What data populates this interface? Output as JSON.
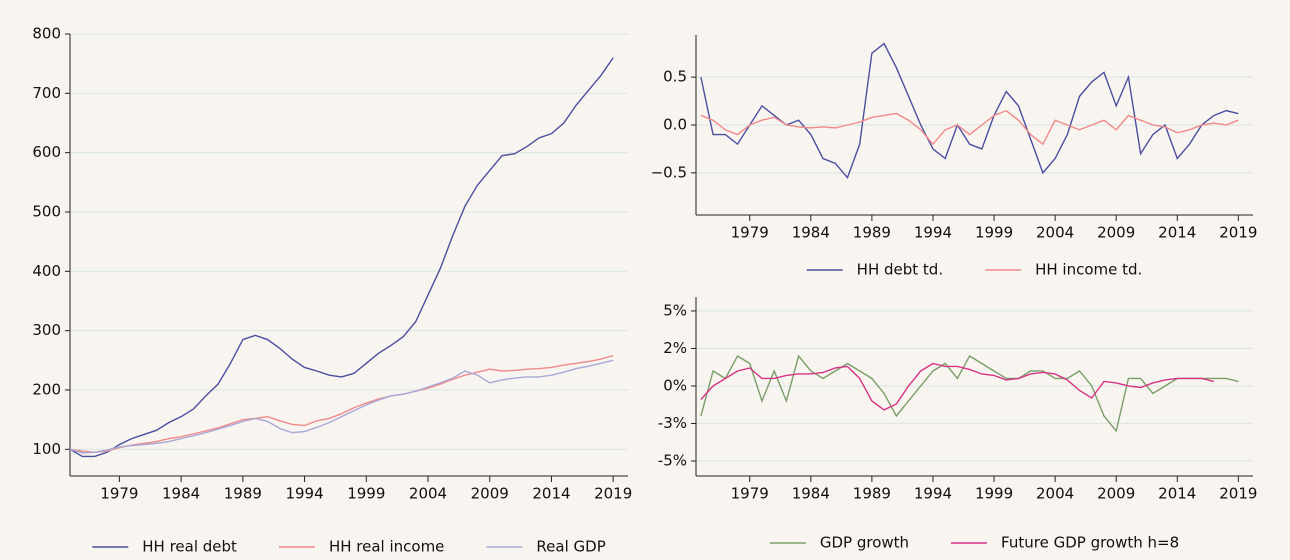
{
  "chart_data": [
    {
      "type": "line",
      "x": [
        1975,
        1976,
        1977,
        1978,
        1979,
        1980,
        1981,
        1982,
        1983,
        1984,
        1985,
        1986,
        1987,
        1988,
        1989,
        1990,
        1991,
        1992,
        1993,
        1994,
        1995,
        1996,
        1997,
        1998,
        1999,
        2000,
        2001,
        2002,
        2003,
        2004,
        2005,
        2006,
        2007,
        2008,
        2009,
        2010,
        2011,
        2012,
        2013,
        2014,
        2015,
        2016,
        2017,
        2018,
        2019
      ],
      "xlim": [
        1975,
        2020.2
      ],
      "xticks": [
        1979,
        1984,
        1989,
        1994,
        1999,
        2004,
        2009,
        2014,
        2019
      ],
      "ylim": [
        55,
        800
      ],
      "yticks": [
        100,
        200,
        300,
        400,
        500,
        600,
        700,
        800
      ],
      "grid": true,
      "legend": "lower center",
      "series": [
        {
          "name": "HH real debt",
          "color": "#4b4fa0",
          "values": [
            100,
            88,
            88,
            95,
            108,
            118,
            125,
            132,
            145,
            155,
            168,
            190,
            210,
            245,
            285,
            292,
            285,
            270,
            252,
            238,
            232,
            225,
            222,
            228,
            245,
            262,
            275,
            290,
            315,
            360,
            405,
            460,
            510,
            545,
            570,
            595,
            598,
            610,
            625,
            632,
            650,
            680,
            705,
            730,
            760
          ]
        },
        {
          "name": "HH real income",
          "color": "#f08a8a",
          "values": [
            100,
            97,
            95,
            97,
            103,
            107,
            110,
            113,
            118,
            121,
            126,
            131,
            136,
            143,
            150,
            152,
            155,
            148,
            142,
            140,
            148,
            152,
            160,
            170,
            178,
            185,
            190,
            193,
            198,
            203,
            210,
            218,
            225,
            230,
            235,
            232,
            233,
            235,
            236,
            238,
            242,
            245,
            248,
            252,
            258
          ]
        },
        {
          "name": "Real GDP",
          "color": "#a9a9d8",
          "values": [
            100,
            94,
            95,
            99,
            104,
            106,
            108,
            110,
            113,
            118,
            123,
            128,
            134,
            140,
            147,
            152,
            147,
            135,
            128,
            130,
            137,
            145,
            155,
            165,
            175,
            183,
            190,
            193,
            198,
            205,
            212,
            220,
            232,
            225,
            212,
            217,
            220,
            222,
            222,
            225,
            230,
            236,
            240,
            245,
            250
          ]
        }
      ]
    },
    {
      "type": "line",
      "x": [
        1975,
        1976,
        1977,
        1978,
        1979,
        1980,
        1981,
        1982,
        1983,
        1984,
        1985,
        1986,
        1987,
        1988,
        1989,
        1990,
        1991,
        1992,
        1993,
        1994,
        1995,
        1996,
        1997,
        1998,
        1999,
        2000,
        2001,
        2002,
        2003,
        2004,
        2005,
        2006,
        2007,
        2008,
        2009,
        2010,
        2011,
        2012,
        2013,
        2014,
        2015,
        2016,
        2017,
        2018,
        2019
      ],
      "xlim": [
        1974.6,
        2020.2
      ],
      "xticks": [
        1979,
        1984,
        1989,
        1994,
        1999,
        2004,
        2009,
        2014,
        2019
      ],
      "ylim": [
        -0.94,
        0.94
      ],
      "yticks": [
        {
          "value": -0.5,
          "label": "−0.5"
        },
        {
          "value": 0,
          "label": "0.0"
        },
        0.5
      ],
      "grid": true,
      "legend": "lower center",
      "series": [
        {
          "name": "HH debt td.",
          "color": "#4b4fa0",
          "values": [
            0.5,
            -0.1,
            -0.1,
            -0.2,
            0.0,
            0.2,
            0.1,
            0.0,
            0.05,
            -0.1,
            -0.35,
            -0.4,
            -0.55,
            -0.2,
            0.75,
            0.85,
            0.6,
            0.3,
            0.0,
            -0.25,
            -0.35,
            0.0,
            -0.2,
            -0.25,
            0.1,
            0.35,
            0.2,
            -0.15,
            -0.5,
            -0.35,
            -0.1,
            0.3,
            0.45,
            0.55,
            0.2,
            0.5,
            -0.3,
            -0.1,
            0.0,
            -0.35,
            -0.2,
            0.0,
            0.1,
            0.15,
            0.12
          ]
        },
        {
          "name": "HH income td.",
          "color": "#f08a8a",
          "values": [
            0.1,
            0.05,
            -0.05,
            -0.1,
            0.0,
            0.05,
            0.08,
            0.0,
            -0.02,
            -0.03,
            -0.02,
            -0.03,
            0.0,
            0.03,
            0.08,
            0.1,
            0.12,
            0.05,
            -0.05,
            -0.2,
            -0.05,
            0.0,
            -0.1,
            0.0,
            0.1,
            0.15,
            0.05,
            -0.1,
            -0.2,
            0.05,
            0.0,
            -0.05,
            0.0,
            0.05,
            -0.05,
            0.1,
            0.05,
            0.0,
            -0.02,
            -0.08,
            -0.05,
            0.0,
            0.02,
            0.0,
            0.05
          ]
        }
      ]
    },
    {
      "type": "line",
      "x": [
        1975,
        1976,
        1977,
        1978,
        1979,
        1980,
        1981,
        1982,
        1983,
        1984,
        1985,
        1986,
        1987,
        1988,
        1989,
        1990,
        1991,
        1992,
        1993,
        1994,
        1995,
        1996,
        1997,
        1998,
        1999,
        2000,
        2001,
        2002,
        2003,
        2004,
        2005,
        2006,
        2007,
        2008,
        2009,
        2010,
        2011,
        2012,
        2013,
        2014,
        2015,
        2016,
        2017,
        2018,
        2019
      ],
      "xlim": [
        1974.6,
        2020.2
      ],
      "xticks": [
        1979,
        1984,
        1989,
        1994,
        1999,
        2004,
        2009,
        2014,
        2019
      ],
      "ylim": [
        -6,
        5.93
      ],
      "yticks": [
        {
          "value": -5,
          "label": "-5%"
        },
        {
          "value": -2.5,
          "label": "-3%"
        },
        {
          "value": 0,
          "label": "0%"
        },
        {
          "value": 2.5,
          "label": "2%"
        },
        {
          "value": 5,
          "label": "5%"
        }
      ],
      "grid": true,
      "legend": "lower center",
      "series": [
        {
          "name": "GDP growth",
          "color": "#7a9e6a",
          "values": [
            -2,
            1,
            0.5,
            2,
            1.5,
            -1,
            1,
            -1,
            2,
            1,
            0.5,
            1,
            1.5,
            1,
            0.5,
            -0.5,
            -2,
            -1,
            0,
            1,
            1.5,
            0.5,
            2,
            1.5,
            1,
            0.5,
            0.5,
            1,
            1,
            0.5,
            0.5,
            1,
            0,
            -2,
            -3,
            0.5,
            0.5,
            -0.5,
            0,
            0.5,
            0.5,
            0.5,
            0.5,
            0.5,
            0.3
          ]
        },
        {
          "name": "Future GDP growth h=8",
          "color": "#d63384",
          "values": [
            -0.9,
            0,
            0.5,
            1,
            1.2,
            0.5,
            0.5,
            0.7,
            0.8,
            0.8,
            0.9,
            1.2,
            1.3,
            0.5,
            -1.0,
            -1.6,
            -1.2,
            0.0,
            1.0,
            1.5,
            1.3,
            1.3,
            1.1,
            0.8,
            0.7,
            0.4,
            0.5,
            0.8,
            0.9,
            0.8,
            0.4,
            -0.3,
            -0.8,
            0.3,
            0.2,
            0.0,
            -0.1,
            0.2,
            0.4,
            0.5,
            0.5,
            0.5,
            0.3,
            null,
            null
          ]
        }
      ]
    }
  ]
}
